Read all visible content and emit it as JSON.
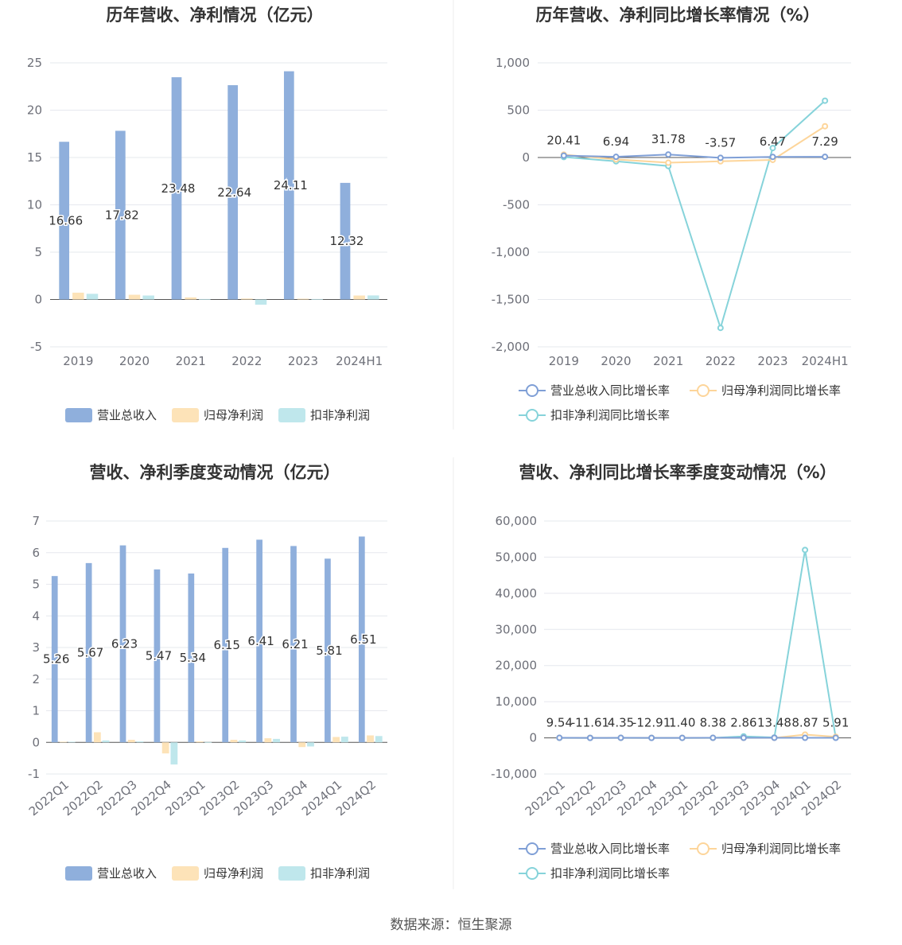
{
  "colors": {
    "revenue": "#8fafdc",
    "net_profit": "#fde3b8",
    "deducted_profit": "#bfe7ec",
    "line_revenue": "#7f9fd6",
    "line_net_profit": "#fdd59a",
    "line_deducted_profit": "#86d3da",
    "grid": "#e6e8ee",
    "axis": "#555555"
  },
  "legend": {
    "bar": [
      "营业总收入",
      "归母净利润",
      "扣非净利润"
    ],
    "line": [
      "营业总收入同比增长率",
      "归母净利润同比增长率",
      "扣非净利润同比增长率"
    ]
  },
  "source": "数据来源：恒生聚源",
  "chart_data": [
    {
      "type": "bar",
      "title": "历年营收、净利情况（亿元）",
      "categories": [
        "2019",
        "2020",
        "2021",
        "2022",
        "2023",
        "2024H1"
      ],
      "ylim": [
        -5,
        25
      ],
      "yticks": [
        25,
        20,
        15,
        10,
        5,
        0,
        -5
      ],
      "ytick_labels": [
        "25",
        "20",
        "15",
        "10",
        "5",
        "0",
        "-5"
      ],
      "grid": true,
      "legend_position": "bottom",
      "series": [
        {
          "name": "营业总收入",
          "values": [
            16.66,
            17.82,
            23.48,
            22.64,
            24.11,
            12.32
          ],
          "labels": [
            "16.66",
            "17.82",
            "23.48",
            "22.64",
            "24.11",
            "12.32"
          ]
        },
        {
          "name": "归母净利润",
          "values": [
            0.72,
            0.5,
            0.22,
            0.1,
            0.08,
            0.42
          ]
        },
        {
          "name": "扣非净利润",
          "values": [
            0.6,
            0.42,
            0.05,
            -0.55,
            0.05,
            0.43
          ]
        }
      ]
    },
    {
      "type": "line",
      "title": "历年营收、净利同比增长率情况（%）",
      "categories": [
        "2019",
        "2020",
        "2021",
        "2022",
        "2023",
        "2024H1"
      ],
      "ylim": [
        -2000,
        1000
      ],
      "yticks": [
        1000,
        500,
        0,
        -500,
        -1000,
        -1500,
        -2000
      ],
      "ytick_labels": [
        "1,000",
        "500",
        "0",
        "-500",
        "-1,000",
        "-1,500",
        "-2,000"
      ],
      "grid": true,
      "legend_position": "bottom",
      "series": [
        {
          "name": "营业总收入同比增长率",
          "values": [
            20.41,
            6.94,
            31.78,
            -3.57,
            6.47,
            7.29
          ],
          "labels": [
            "20.41",
            "6.94",
            "31.78",
            "-3.57",
            "6.47",
            "7.29"
          ]
        },
        {
          "name": "归母净利润同比增长率",
          "values": [
            30,
            -20,
            -55,
            -40,
            -25,
            330
          ]
        },
        {
          "name": "扣非净利润同比增长率",
          "values": [
            5,
            -40,
            -90,
            -1800,
            100,
            600
          ]
        }
      ]
    },
    {
      "type": "bar",
      "title": "营收、净利季度变动情况（亿元）",
      "categories": [
        "2022Q1",
        "2022Q2",
        "2022Q3",
        "2022Q4",
        "2023Q1",
        "2023Q2",
        "2023Q3",
        "2023Q4",
        "2024Q1",
        "2024Q2"
      ],
      "ylim": [
        -1,
        7
      ],
      "yticks": [
        7,
        6,
        5,
        4,
        3,
        2,
        1,
        0,
        -1
      ],
      "ytick_labels": [
        "7",
        "6",
        "5",
        "4",
        "3",
        "2",
        "1",
        "0",
        "-1"
      ],
      "grid": true,
      "legend_position": "bottom",
      "series": [
        {
          "name": "营业总收入",
          "values": [
            5.26,
            5.67,
            6.23,
            5.47,
            5.34,
            6.15,
            6.41,
            6.21,
            5.81,
            6.51
          ],
          "labels": [
            "5.26",
            "5.67",
            "6.23",
            "5.47",
            "5.34",
            "6.15",
            "6.41",
            "6.21",
            "5.81",
            "6.51"
          ]
        },
        {
          "name": "归母净利润",
          "values": [
            0.02,
            0.32,
            0.08,
            -0.35,
            0.03,
            0.08,
            0.13,
            -0.15,
            0.17,
            0.22
          ]
        },
        {
          "name": "扣非净利润",
          "values": [
            0.02,
            0.06,
            0.03,
            -0.7,
            0.01,
            0.06,
            0.11,
            -0.13,
            0.18,
            0.2
          ]
        }
      ]
    },
    {
      "type": "line",
      "title": "营收、净利同比增长率季度变动情况（%）",
      "categories": [
        "2022Q1",
        "2022Q2",
        "2022Q3",
        "2022Q4",
        "2023Q1",
        "2023Q2",
        "2023Q3",
        "2023Q4",
        "2024Q1",
        "2024Q2"
      ],
      "ylim": [
        -10000,
        60000
      ],
      "yticks": [
        60000,
        50000,
        40000,
        30000,
        20000,
        10000,
        0,
        -10000
      ],
      "ytick_labels": [
        "60,000",
        "50,000",
        "40,000",
        "30,000",
        "20,000",
        "10,000",
        "0",
        "-10,000"
      ],
      "grid": true,
      "legend_position": "bottom",
      "series": [
        {
          "name": "营业总收入同比增长率",
          "values": [
            9.54,
            -11.61,
            4.35,
            -12.91,
            1.4,
            8.38,
            2.86,
            13.48,
            8.87,
            5.91
          ],
          "labels": [
            "9.54",
            "-11.61",
            "4.35",
            "-12.91",
            "1.40",
            "8.38",
            "2.86",
            "13.48",
            "8.87",
            "5.91"
          ]
        },
        {
          "name": "归母净利润同比增长率",
          "values": [
            0,
            0,
            0,
            0,
            0,
            0,
            0,
            0,
            900,
            300
          ]
        },
        {
          "name": "扣非净利润同比增长率",
          "values": [
            0,
            0,
            0,
            0,
            0,
            0,
            400,
            100,
            52000,
            50
          ]
        }
      ]
    }
  ]
}
